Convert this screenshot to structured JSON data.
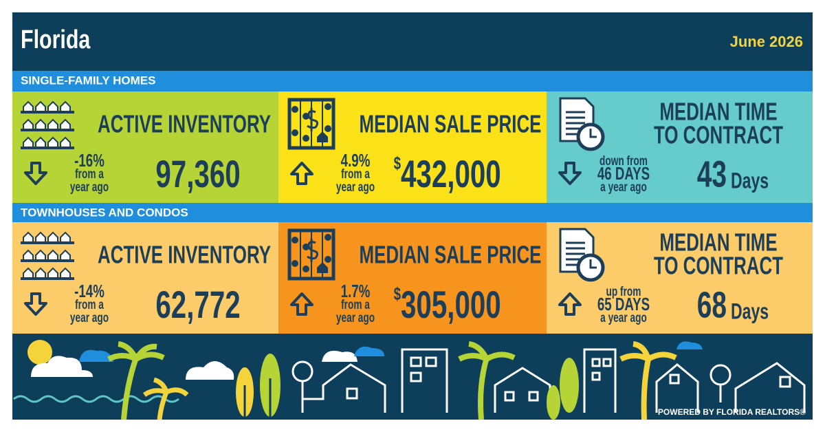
{
  "header": {
    "title": "Florida",
    "date": "June 2026"
  },
  "sections": [
    {
      "title": "SINGLE-FAMILY HOMES",
      "cards": [
        {
          "icon": "houses",
          "background": "#b6d436",
          "direction": "down",
          "label_lines": [
            "ACTIVE INVENTORY"
          ],
          "change_lines": [
            "-16%",
            "from a",
            "year ago"
          ],
          "value": "97,360"
        },
        {
          "icon": "abacus",
          "background": "#fbe118",
          "direction": "up",
          "label_lines": [
            "MEDIAN SALE PRICE"
          ],
          "change_lines": [
            "4.9%",
            "from a",
            "year ago"
          ],
          "currency": "$",
          "value": "432,000"
        },
        {
          "icon": "clock",
          "background": "#66cbcb",
          "direction": "down",
          "label_lines": [
            "MEDIAN TIME",
            "TO CONTRACT"
          ],
          "change_lines": [
            "down from",
            "46 DAYS",
            "a year ago"
          ],
          "value": "43",
          "unit": "Days"
        }
      ]
    },
    {
      "title": "TOWNHOUSES AND CONDOS",
      "cards": [
        {
          "icon": "houses",
          "background": "#fccb6a",
          "direction": "down",
          "label_lines": [
            "ACTIVE INVENTORY"
          ],
          "change_lines": [
            "-14%",
            "from a",
            "year ago"
          ],
          "value": "62,772"
        },
        {
          "icon": "abacus",
          "background": "#f7941d",
          "direction": "up",
          "label_lines": [
            "MEDIAN SALE PRICE"
          ],
          "change_lines": [
            "1.7%",
            "from a",
            "year ago"
          ],
          "currency": "$",
          "value": "305,000"
        },
        {
          "icon": "clock",
          "background": "#fccb6a",
          "direction": "up",
          "label_lines": [
            "MEDIAN TIME",
            "TO CONTRACT"
          ],
          "change_lines": [
            "up from",
            "65 DAYS",
            "a year ago"
          ],
          "value": "68",
          "unit": "Days"
        }
      ]
    }
  ],
  "footer": "POWERED BY FLORIDA REALTORS®"
}
